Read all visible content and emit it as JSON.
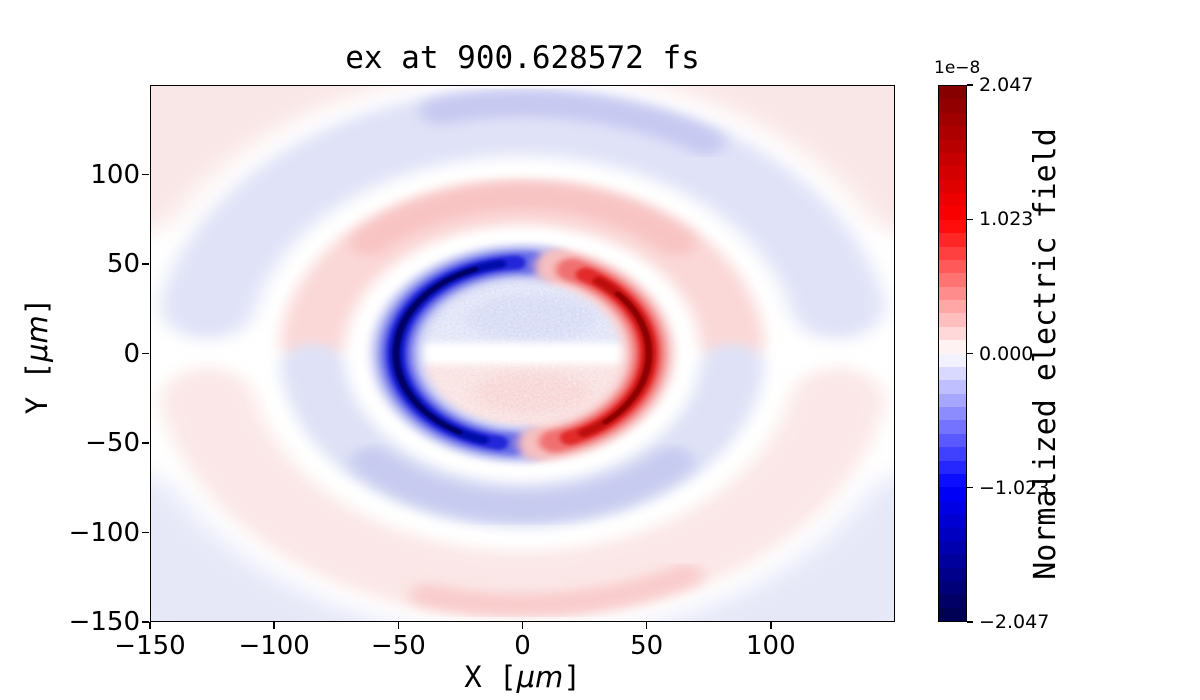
{
  "figure": {
    "title": "ex at 900.628572 fs",
    "background_color": "#ffffff"
  },
  "axes": {
    "xlabel": {
      "prefix": "X [",
      "unit": "μm",
      "suffix": "]"
    },
    "ylabel": {
      "prefix": "Y [",
      "unit": "μm",
      "suffix": "]"
    },
    "xlim": [
      -150,
      150
    ],
    "ylim": [
      -150,
      150
    ],
    "x_ticks": [
      {
        "value": -150,
        "label": "−150"
      },
      {
        "value": -100,
        "label": "−100"
      },
      {
        "value": -50,
        "label": "−50"
      },
      {
        "value": 0,
        "label": "0"
      },
      {
        "value": 50,
        "label": "50"
      },
      {
        "value": 100,
        "label": "100"
      }
    ],
    "y_ticks": [
      {
        "value": 100,
        "label": "100"
      },
      {
        "value": 50,
        "label": "50"
      },
      {
        "value": 0,
        "label": "0"
      },
      {
        "value": -50,
        "label": "−50"
      },
      {
        "value": -100,
        "label": "−100"
      },
      {
        "value": -150,
        "label": "−150"
      }
    ]
  },
  "colorbar": {
    "offset_label": "1e−8",
    "label": "Normalized electric field",
    "vmin": -2.047,
    "vmax": 2.047,
    "levels": 40,
    "colormap": "seismic",
    "anchors": [
      {
        "t": 0.0,
        "color": "#00004c"
      },
      {
        "t": 0.25,
        "color": "#0000ff"
      },
      {
        "t": 0.5,
        "color": "#ffffff"
      },
      {
        "t": 0.75,
        "color": "#ff0000"
      },
      {
        "t": 1.0,
        "color": "#800000"
      }
    ],
    "ticks": [
      {
        "value": 2.047,
        "label": "2.047"
      },
      {
        "value": 1.023,
        "label": "1.023"
      },
      {
        "value": 0.0,
        "label": "0.000"
      },
      {
        "value": -1.023,
        "label": "−1.023"
      },
      {
        "value": -2.047,
        "label": "−2.047"
      }
    ]
  },
  "chart_data": {
    "type": "heatmap",
    "title": "ex at 900.628572 fs",
    "xlabel": "X [μm]",
    "ylabel": "Y [μm]",
    "xlim": [
      -150,
      150
    ],
    "ylim": [
      -150,
      150
    ],
    "colorbar_label": "Normalized electric field",
    "scale_factor": "1e-8",
    "value_range": [
      -2.047e-08,
      2.047e-08
    ],
    "colormap": "seismic (dark blue → blue → white → red → dark red)",
    "features": [
      "central ring of radius ≈50 μm around the origin",
      "intense negative (dark blue) crescent on the left of the ring, peak ≈ -2.0e-8 near (-50, 0)",
      "intense positive (dark red) crescent on the right of the ring, peak ≈ +2.0e-8 near (+50, 0)",
      "crescent tips curl toward x≈0 at y≈±50 leaving small gaps at top and bottom of the ring",
      "ring interior: weak noisy negative (light blue) in upper half, weak noisy positive (light pink) in lower half, near-zero band along y≈0",
      "elliptical wave bands outside the ring, antisymmetric in y: positive (pink) band above / negative (lavender) band below at r≈70–100 μm",
      "negative (lavender) band with darker core near top edge / positive (pink) band with darker core near bottom edge at r≈110–150 μm",
      "faint positive tint in top corners, faint negative tint in bottom corners"
    ],
    "approx_grid_note": "coarse sample of the field in units of 1e-8, rows top (y=+140) to bottom (y=-140)",
    "approx_grid_x": [
      -140,
      -100,
      -50,
      0,
      50,
      100,
      140
    ],
    "approx_grid_y": [
      140,
      100,
      70,
      50,
      0,
      -50,
      -70,
      -100,
      -140
    ],
    "approx_grid_values": [
      [
        0.1,
        -0.15,
        -0.35,
        -0.4,
        -0.35,
        -0.15,
        0.1
      ],
      [
        -0.1,
        -0.25,
        -0.2,
        -0.2,
        -0.2,
        -0.25,
        -0.1
      ],
      [
        -0.15,
        0.05,
        0.3,
        0.35,
        0.3,
        0.05,
        -0.15
      ],
      [
        0.05,
        0.15,
        0.2,
        0.1,
        0.2,
        0.15,
        0.05
      ],
      [
        0.0,
        0.0,
        -2.0,
        0.0,
        2.0,
        0.0,
        0.0
      ],
      [
        0.05,
        -0.1,
        -0.15,
        -0.05,
        -0.15,
        -0.1,
        0.05
      ],
      [
        0.1,
        -0.05,
        -0.3,
        -0.35,
        -0.3,
        -0.05,
        0.1
      ],
      [
        0.1,
        0.2,
        0.2,
        0.2,
        0.2,
        0.2,
        0.1
      ],
      [
        -0.1,
        0.1,
        0.3,
        0.35,
        0.3,
        0.1,
        -0.1
      ]
    ]
  }
}
